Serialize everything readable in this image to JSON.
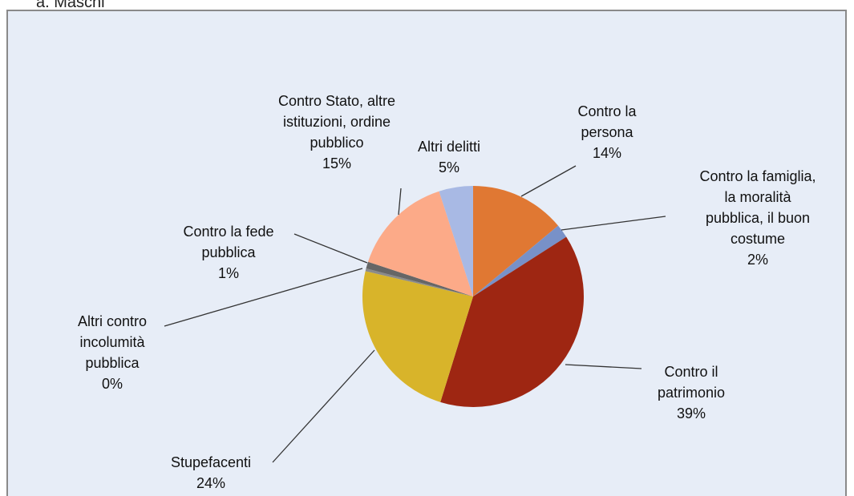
{
  "chart_data": {
    "type": "pie",
    "title": "a. Maschi",
    "categories": [
      "Contro la persona",
      "Contro la famiglia, la moralità pubblica, il buon costume",
      "Contro il patrimonio",
      "Stupefacenti",
      "Altri contro incolumità pubblica",
      "Contro la fede pubblica",
      "Contro Stato, altre istituzioni, ordine pubblico",
      "Altri delitti"
    ],
    "values": [
      14,
      2,
      39,
      24,
      0.4,
      1,
      15,
      5
    ],
    "value_labels": [
      "14%",
      "2%",
      "39%",
      "24%",
      "0%",
      "1%",
      "15%",
      "5%"
    ],
    "colors": [
      "#e07833",
      "#7891c8",
      "#9e2612",
      "#d8b42a",
      "#8a8a8a",
      "#666666",
      "#fcaa88",
      "#a8b9e4"
    ]
  }
}
